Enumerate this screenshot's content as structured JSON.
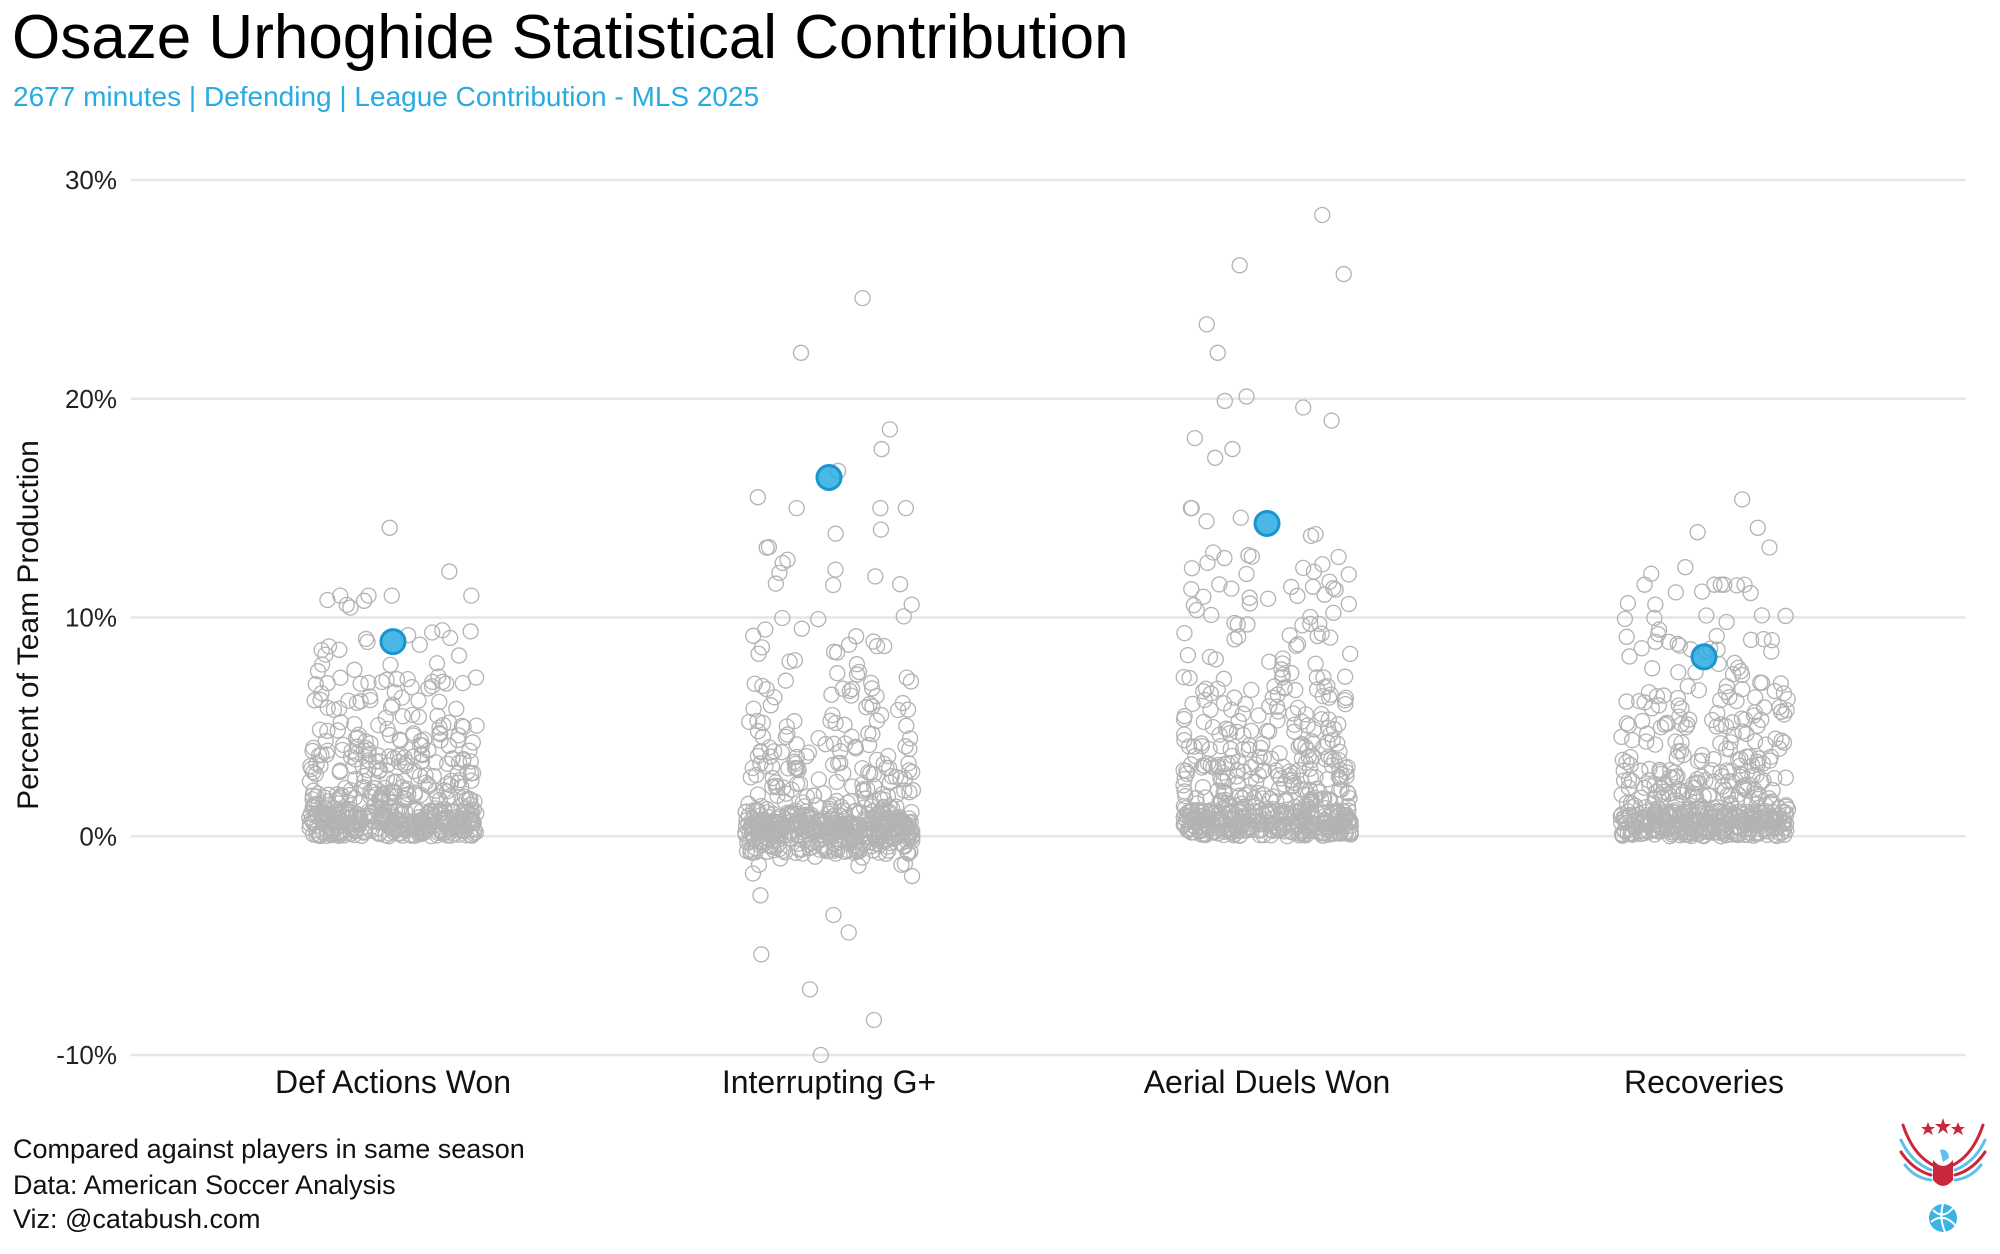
{
  "header": {
    "title": "Osaze Urhoghide Statistical Contribution",
    "subtitle": "2677 minutes | Defending | League Contribution - MLS 2025"
  },
  "caption": {
    "line1": "Compared against players in same season",
    "line2": "Data: American Soccer Analysis",
    "line3": "Viz: @catabush.com"
  },
  "colors": {
    "accent": "#29abe2",
    "accent_stroke": "#1a95cf",
    "population": "#b3b3b3",
    "grid": "#e6e6e6"
  },
  "logo": {
    "name": "eagle-soccer-ball-logo"
  },
  "chart_data": {
    "type": "scatter",
    "subtype": "jittered strip plot",
    "ylabel": "Percent of Team Production",
    "xlabel": "",
    "ylim": [
      -10,
      30
    ],
    "yticks": [
      30,
      20,
      10,
      0,
      -10
    ],
    "ytick_labels": [
      "30%",
      "20%",
      "10%",
      "0%",
      "-10%"
    ],
    "grid": true,
    "categories": [
      "Def Actions Won",
      "Interrupting G+",
      "Aerial Duels Won",
      "Recoveries"
    ],
    "highlight_player": "Osaze Urhoghide",
    "highlight_values": [
      8.9,
      16.4,
      14.3,
      8.2
    ],
    "population": [
      {
        "category": "Def Actions Won",
        "approx_count": 550,
        "min": 0,
        "typical_max": 11,
        "outliers": [
          14.1,
          12.1,
          11.0,
          10.8
        ]
      },
      {
        "category": "Interrupting G+",
        "approx_count": 600,
        "min": -10,
        "typical_max": 15,
        "outliers": [
          24.6,
          22.1,
          18.6,
          17.7,
          16.7,
          15.5,
          -2.7,
          -3.6,
          -4.4,
          -5.4,
          -7.0,
          -8.4,
          -10.0
        ]
      },
      {
        "category": "Aerial Duels Won",
        "approx_count": 600,
        "min": 0,
        "typical_max": 15,
        "outliers": [
          28.4,
          26.1,
          25.7,
          23.4,
          22.1,
          20.1,
          19.9,
          19.6,
          19.0,
          18.2,
          17.7,
          17.3
        ]
      },
      {
        "category": "Recoveries",
        "approx_count": 550,
        "min": 0,
        "typical_max": 11.5,
        "outliers": [
          15.4,
          14.1,
          13.9,
          13.2,
          12.3,
          12.0
        ]
      }
    ]
  }
}
